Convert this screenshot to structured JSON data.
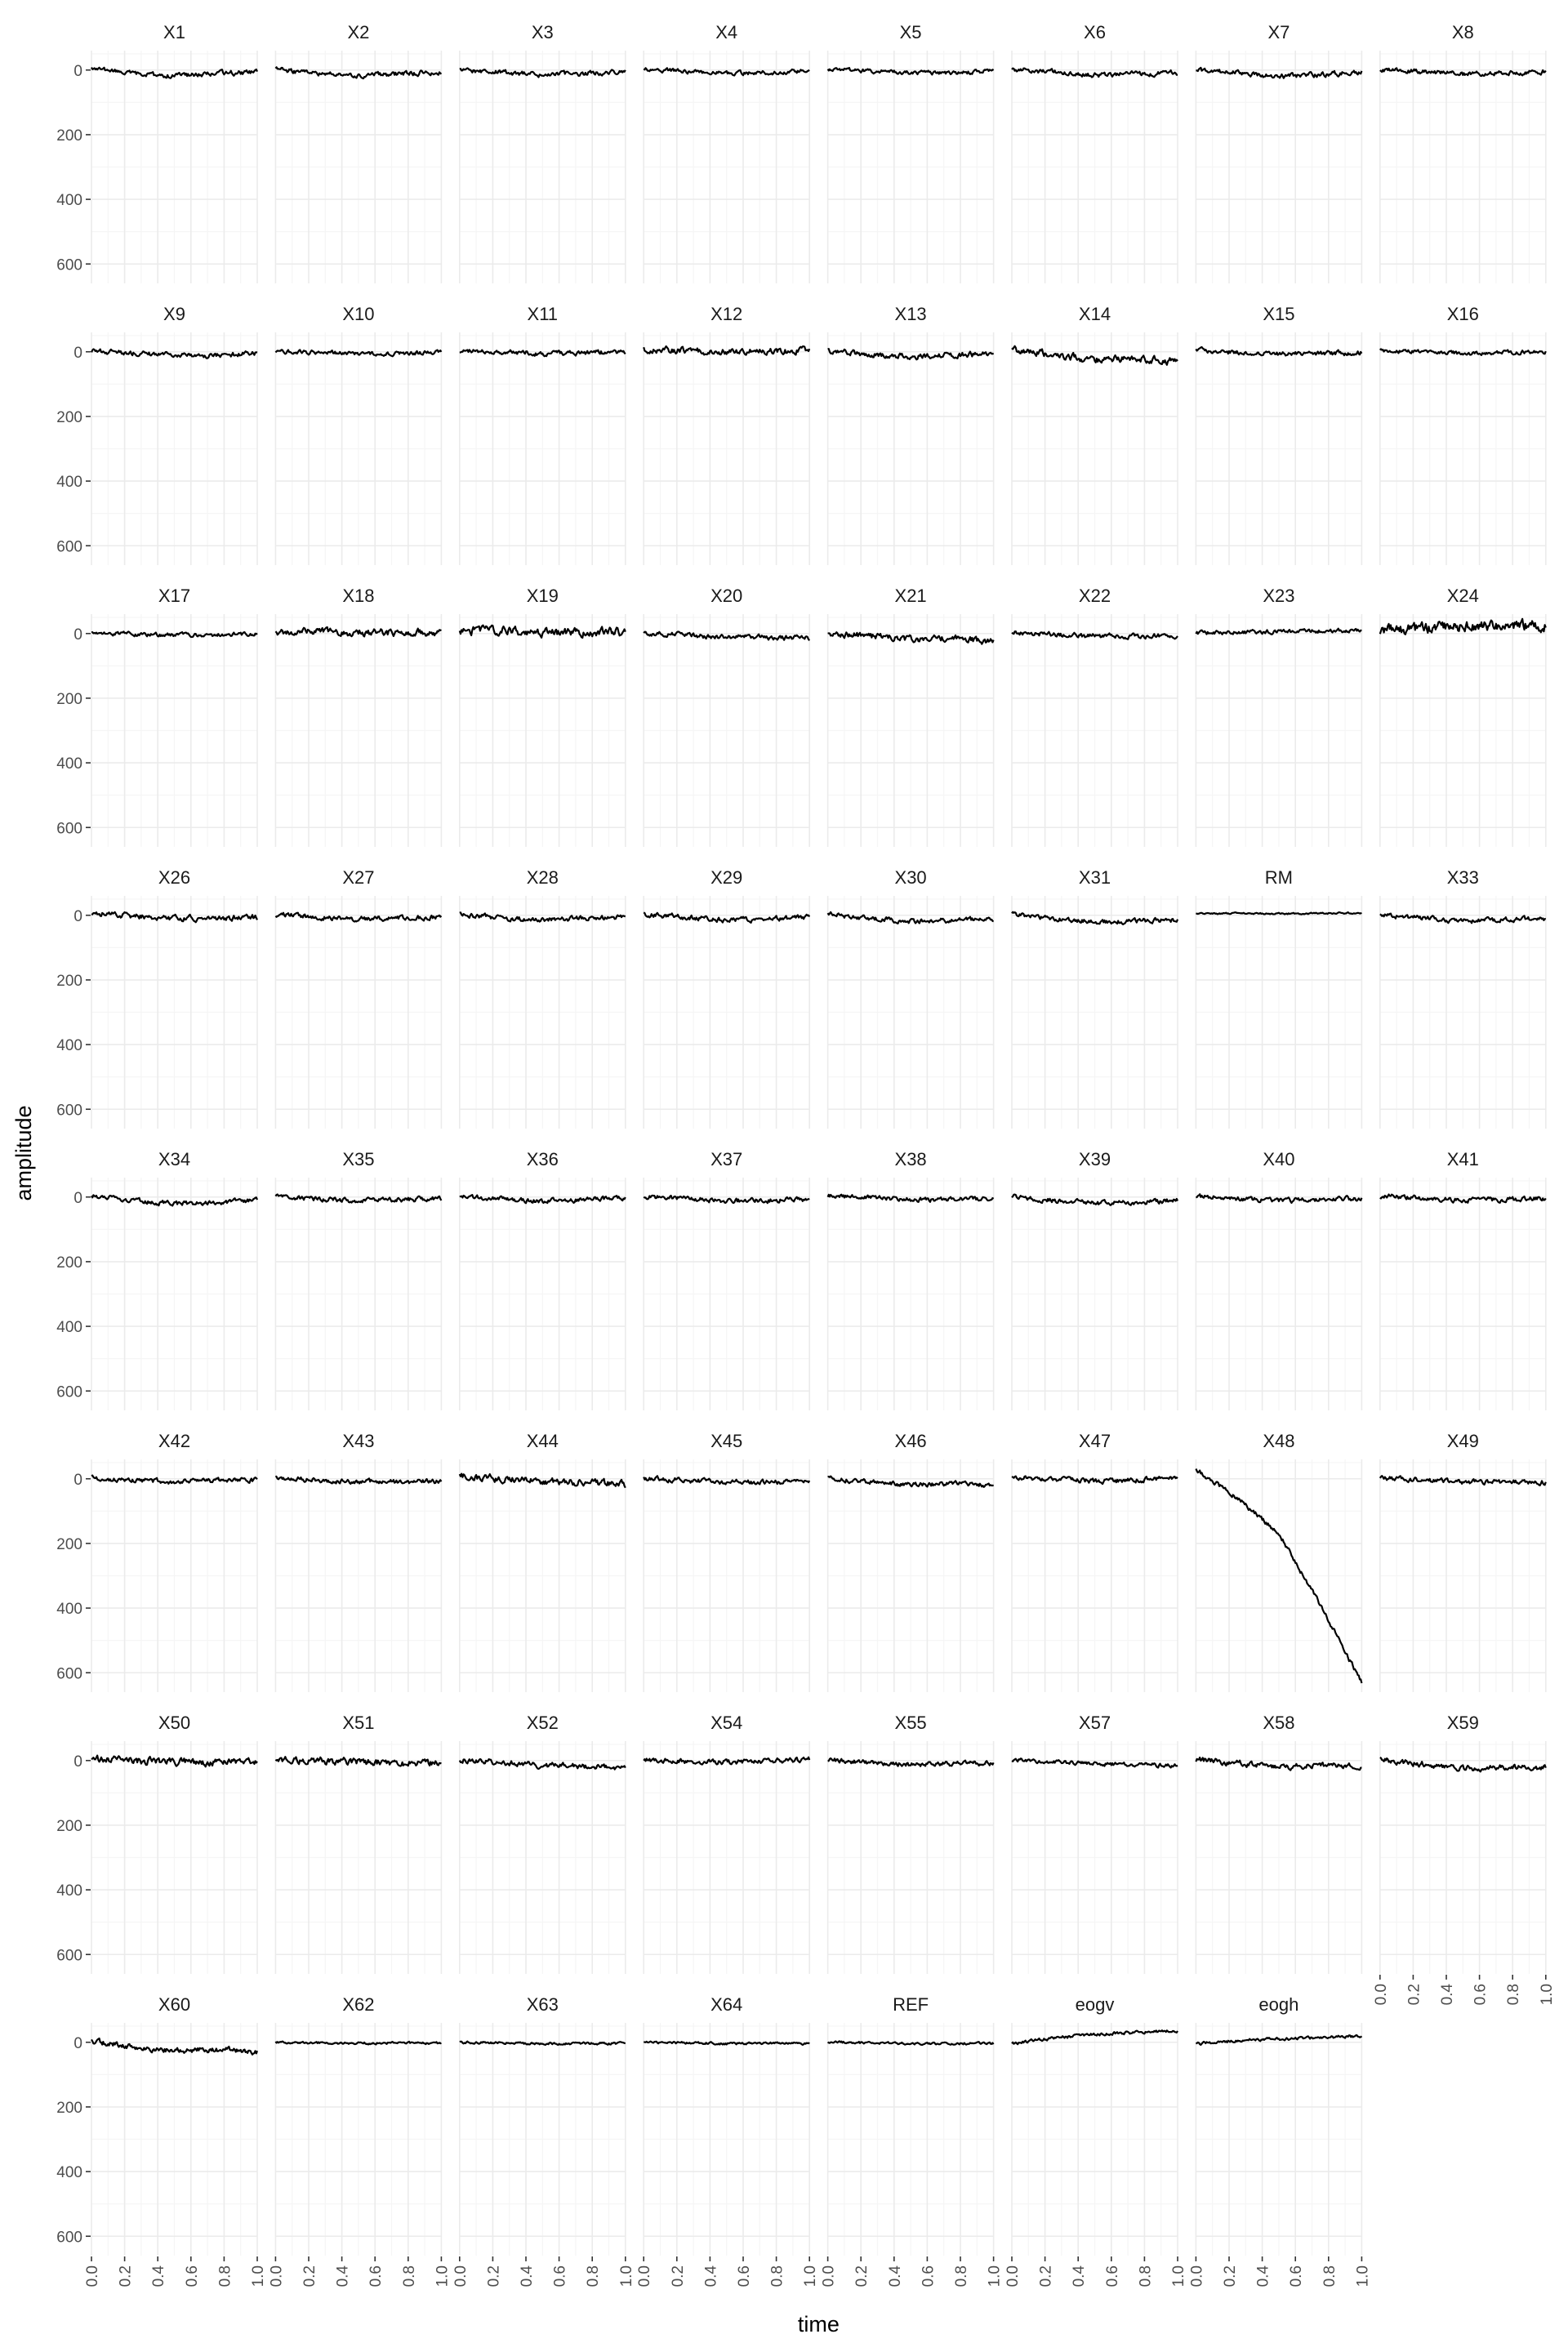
{
  "colors": {
    "background": "#ffffff",
    "grid_major": "#ebebeb",
    "grid_minor": "#f5f5f5",
    "line": "#000000",
    "tick_text": "#4d4d4d",
    "strip_text": "#1a1a1a"
  },
  "chart_data": {
    "type": "line",
    "layout": "faceted small multiples, 8 columns x 8 rows, shared axes",
    "xlabel": "time",
    "ylabel": "amplitude",
    "xlim": [
      0,
      1
    ],
    "ylim": [
      -60,
      660
    ],
    "y_reversed": true,
    "x_ticks": [
      0.0,
      0.2,
      0.4,
      0.6,
      0.8,
      1.0
    ],
    "x_tick_labels": [
      "0.0",
      "0.2",
      "0.4",
      "0.6",
      "0.8",
      "1.0"
    ],
    "y_ticks": [
      0,
      200,
      400,
      600
    ],
    "y_tick_labels": [
      "0",
      "200",
      "400",
      "600"
    ],
    "grid": true,
    "legend": "none",
    "panels": [
      {
        "label": "X1",
        "trend": [
          -5,
          12,
          18,
          10,
          8
        ],
        "noise": 6
      },
      {
        "label": "X2",
        "trend": [
          -3,
          12,
          18,
          12,
          5
        ],
        "noise": 6
      },
      {
        "label": "X3",
        "trend": [
          -2,
          8,
          15,
          10,
          4
        ],
        "noise": 6
      },
      {
        "label": "X4",
        "trend": [
          -3,
          4,
          10,
          8,
          2
        ],
        "noise": 5
      },
      {
        "label": "X5",
        "trend": [
          -3,
          3,
          8,
          10,
          2
        ],
        "noise": 5
      },
      {
        "label": "X6",
        "trend": [
          -3,
          6,
          15,
          12,
          8
        ],
        "noise": 6
      },
      {
        "label": "X7",
        "trend": [
          0,
          8,
          20,
          14,
          6
        ],
        "noise": 6
      },
      {
        "label": "X8",
        "trend": [
          -2,
          4,
          12,
          8,
          4
        ],
        "noise": 6
      },
      {
        "label": "X9",
        "trend": [
          -2,
          5,
          10,
          12,
          5
        ],
        "noise": 6
      },
      {
        "label": "X10",
        "trend": [
          -2,
          2,
          6,
          5,
          2
        ],
        "noise": 5
      },
      {
        "label": "X11",
        "trend": [
          -3,
          0,
          5,
          3,
          0
        ],
        "noise": 6
      },
      {
        "label": "X12",
        "trend": [
          -6,
          -4,
          0,
          -2,
          -4
        ],
        "noise": 8
      },
      {
        "label": "X13",
        "trend": [
          -2,
          8,
          15,
          10,
          8
        ],
        "noise": 7
      },
      {
        "label": "X14",
        "trend": [
          -5,
          8,
          25,
          22,
          30
        ],
        "noise": 9
      },
      {
        "label": "X15",
        "trend": [
          -5,
          3,
          8,
          6,
          3
        ],
        "noise": 6
      },
      {
        "label": "X16",
        "trend": [
          -3,
          0,
          5,
          2,
          0
        ],
        "noise": 5
      },
      {
        "label": "X17",
        "trend": [
          -2,
          2,
          5,
          4,
          2
        ],
        "noise": 5
      },
      {
        "label": "X18",
        "trend": [
          -5,
          -6,
          -2,
          -3,
          -5
        ],
        "noise": 9
      },
      {
        "label": "X19",
        "trend": [
          -8,
          -10,
          -4,
          -5,
          -4
        ],
        "noise": 11
      },
      {
        "label": "X20",
        "trend": [
          -2,
          5,
          10,
          12,
          15
        ],
        "noise": 6
      },
      {
        "label": "X21",
        "trend": [
          -2,
          8,
          18,
          15,
          25
        ],
        "noise": 8
      },
      {
        "label": "X22",
        "trend": [
          -5,
          3,
          8,
          8,
          8
        ],
        "noise": 6
      },
      {
        "label": "X23",
        "trend": [
          -2,
          -3,
          -6,
          -8,
          -10
        ],
        "noise": 5
      },
      {
        "label": "X24",
        "trend": [
          -8,
          -15,
          -22,
          -25,
          -25
        ],
        "noise": 14
      },
      {
        "label": "X26",
        "trend": [
          -8,
          2,
          10,
          8,
          6
        ],
        "noise": 7
      },
      {
        "label": "X27",
        "trend": [
          -3,
          5,
          12,
          8,
          6
        ],
        "noise": 6
      },
      {
        "label": "X28",
        "trend": [
          -2,
          8,
          14,
          10,
          6
        ],
        "noise": 6
      },
      {
        "label": "X29",
        "trend": [
          -4,
          6,
          14,
          12,
          6
        ],
        "noise": 6
      },
      {
        "label": "X30",
        "trend": [
          -3,
          10,
          18,
          16,
          10
        ],
        "noise": 6
      },
      {
        "label": "X31",
        "trend": [
          -3,
          10,
          20,
          18,
          14
        ],
        "noise": 6
      },
      {
        "label": "RM",
        "trend": [
          -4,
          -6,
          -5,
          -6,
          -7
        ],
        "noise": 2
      },
      {
        "label": "X33",
        "trend": [
          -2,
          8,
          18,
          14,
          10
        ],
        "noise": 6
      },
      {
        "label": "X34",
        "trend": [
          -3,
          10,
          22,
          16,
          10
        ],
        "noise": 6
      },
      {
        "label": "X35",
        "trend": [
          -3,
          6,
          12,
          8,
          4
        ],
        "noise": 6
      },
      {
        "label": "X36",
        "trend": [
          -2,
          6,
          12,
          8,
          2
        ],
        "noise": 6
      },
      {
        "label": "X37",
        "trend": [
          -2,
          5,
          12,
          10,
          6
        ],
        "noise": 6
      },
      {
        "label": "X38",
        "trend": [
          -3,
          3,
          8,
          8,
          4
        ],
        "noise": 6
      },
      {
        "label": "X39",
        "trend": [
          -2,
          10,
          20,
          16,
          10
        ],
        "noise": 6
      },
      {
        "label": "X40",
        "trend": [
          -3,
          5,
          12,
          8,
          4
        ],
        "noise": 6
      },
      {
        "label": "X41",
        "trend": [
          -3,
          4,
          10,
          8,
          4
        ],
        "noise": 6
      },
      {
        "label": "X42",
        "trend": [
          -3,
          3,
          10,
          6,
          4
        ],
        "noise": 6
      },
      {
        "label": "X43",
        "trend": [
          -3,
          4,
          10,
          10,
          8
        ],
        "noise": 6
      },
      {
        "label": "X44",
        "trend": [
          -8,
          0,
          10,
          12,
          16
        ],
        "noise": 9
      },
      {
        "label": "X45",
        "trend": [
          -2,
          5,
          10,
          10,
          8
        ],
        "noise": 6
      },
      {
        "label": "X46",
        "trend": [
          -3,
          10,
          20,
          15,
          20
        ],
        "noise": 6
      },
      {
        "label": "X47",
        "trend": [
          -5,
          0,
          8,
          4,
          -2
        ],
        "noise": 6
      },
      {
        "label": "X48",
        "trend": [
          -30,
          60,
          170,
          390,
          630
        ],
        "noise": 6
      },
      {
        "label": "X49",
        "trend": [
          -2,
          5,
          10,
          10,
          10
        ],
        "noise": 6
      },
      {
        "label": "X50",
        "trend": [
          -5,
          0,
          4,
          6,
          6
        ],
        "noise": 9
      },
      {
        "label": "X51",
        "trend": [
          -5,
          0,
          6,
          8,
          10
        ],
        "noise": 9
      },
      {
        "label": "X52",
        "trend": [
          -3,
          6,
          15,
          18,
          22
        ],
        "noise": 7
      },
      {
        "label": "X54",
        "trend": [
          -3,
          3,
          5,
          2,
          -4
        ],
        "noise": 6
      },
      {
        "label": "X55",
        "trend": [
          -2,
          6,
          12,
          10,
          8
        ],
        "noise": 6
      },
      {
        "label": "X57",
        "trend": [
          -3,
          5,
          10,
          12,
          16
        ],
        "noise": 5
      },
      {
        "label": "X58",
        "trend": [
          -3,
          8,
          20,
          16,
          18
        ],
        "noise": 7
      },
      {
        "label": "X59",
        "trend": [
          -3,
          10,
          25,
          20,
          22
        ],
        "noise": 7
      },
      {
        "label": "X60",
        "trend": [
          -3,
          15,
          25,
          22,
          30
        ],
        "noise": 7
      },
      {
        "label": "X62",
        "trend": [
          0,
          2,
          3,
          2,
          3
        ],
        "noise": 3
      },
      {
        "label": "X63",
        "trend": [
          0,
          2,
          4,
          3,
          4
        ],
        "noise": 3
      },
      {
        "label": "X64",
        "trend": [
          0,
          2,
          4,
          3,
          4
        ],
        "noise": 3
      },
      {
        "label": "REF",
        "trend": [
          0,
          2,
          4,
          3,
          4
        ],
        "noise": 3
      },
      {
        "label": "eogv",
        "trend": [
          4,
          -12,
          -25,
          -30,
          -35
        ],
        "noise": 4
      },
      {
        "label": "eogh",
        "trend": [
          4,
          -5,
          -10,
          -15,
          -20
        ],
        "noise": 4
      }
    ]
  }
}
